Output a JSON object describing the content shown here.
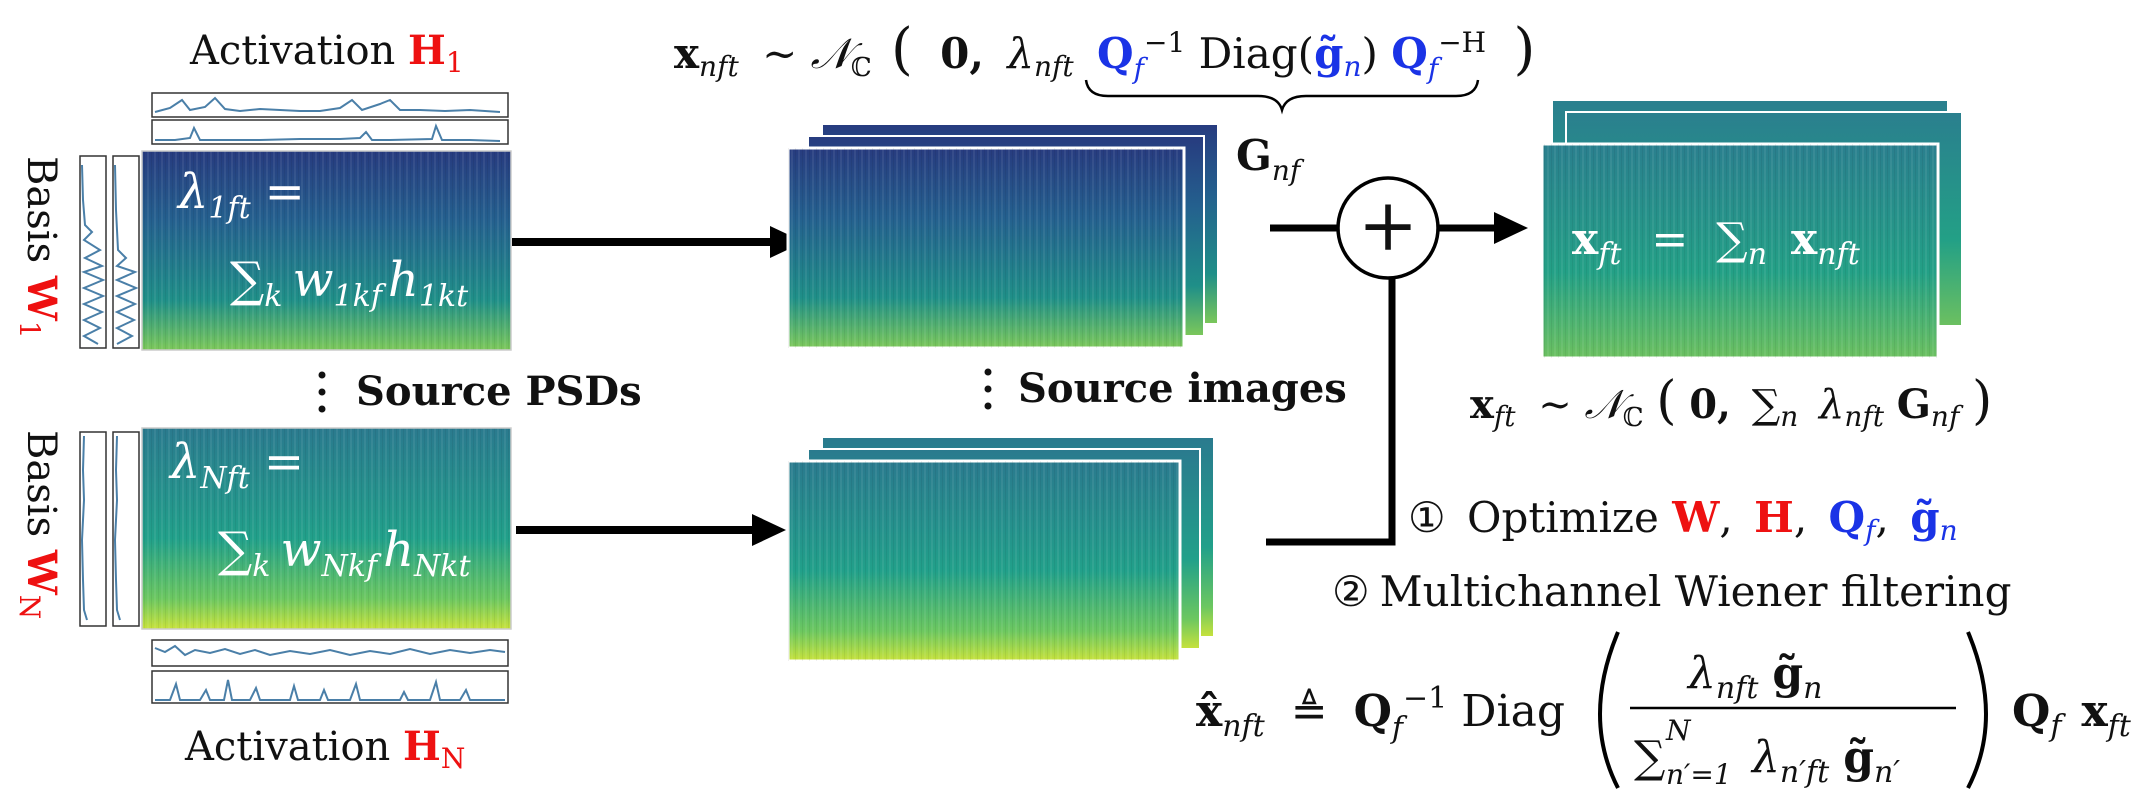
{
  "activation_top": {
    "text": "Activation ",
    "symbol": "H",
    "sub": "1"
  },
  "activation_bottom": {
    "text": "Activation ",
    "symbol": "H",
    "sub": "N"
  },
  "basis_top": {
    "text": "Basis ",
    "symbol": "W",
    "sub": "1"
  },
  "basis_bottom": {
    "text": "Basis ",
    "symbol": "W",
    "sub": "N"
  },
  "lambda_top": {
    "lhs": "λ",
    "lhs_sub": "1ft",
    "eq": "=",
    "sum": "∑",
    "sum_sub": "k",
    "w": "w",
    "w_sub": "1kf",
    "h": "h",
    "h_sub": "1kt"
  },
  "lambda_bottom": {
    "lhs": "λ",
    "lhs_sub": "Nft",
    "eq": "=",
    "sum": "∑",
    "sum_sub": "k",
    "w": "w",
    "w_sub": "Nkf",
    "h": "h",
    "h_sub": "Nkt"
  },
  "source_psds_label": "Source PSDs",
  "source_images_label": "Source images",
  "top_formula": {
    "x": "x",
    "x_sub": "nft",
    "sim": "∼",
    "N": "𝒩",
    "N_sub": "ℂ",
    "zero": "0,",
    "lambda": "λ",
    "lambda_sub": "nft",
    "Q": "Q",
    "Q_sub": "f",
    "inv": "−1",
    "diag": "Diag",
    "g": "g̃",
    "g_sub": "n",
    "Q2": "Q",
    "Q2_sub": "f",
    "herm": "−H"
  },
  "G_label": {
    "G": "G",
    "sub": "nf"
  },
  "plus_symbol": "+",
  "mix_formula": {
    "x": "x",
    "x_sub": "ft",
    "eq": "=",
    "sum": "∑",
    "sum_sub": "n",
    "x2": "x",
    "x2_sub": "nft"
  },
  "mix_dist": {
    "x": "x",
    "x_sub": "ft",
    "sim": "∼",
    "N": "𝒩",
    "N_sub": "ℂ",
    "zero": "0,",
    "sum": "∑",
    "sum_sub": "n",
    "lambda": "λ",
    "lambda_sub": "nft",
    "G": "G",
    "G_sub": "nf"
  },
  "step1": {
    "num": "①",
    "text": "Optimize ",
    "W": "W",
    "H": "H",
    "Q": "Q",
    "Q_sub": "f",
    "g": "g̃",
    "g_sub": "n",
    "comma": ","
  },
  "step2": {
    "num": "②",
    "text": "Multichannel Wiener filtering"
  },
  "wiener": {
    "xhat": "x̂",
    "xhat_sub": "nft",
    "def": "≜",
    "Q": "Q",
    "Q_sub": "f",
    "inv": "−1",
    "diag": "Diag",
    "num_lambda": "λ",
    "num_lambda_sub": "nft",
    "num_g": "g̃",
    "num_g_sub": "n",
    "den_sum": "∑",
    "den_sum_top": "N",
    "den_sum_bot": "n′=1",
    "den_lambda": "λ",
    "den_lambda_sub": "n′ft",
    "den_g": "g̃",
    "den_g_sub": "n′",
    "Q2": "Q",
    "Q2_sub": "f",
    "x": "x",
    "x_sub": "ft"
  },
  "colors": {
    "red": "#ee1111",
    "blue": "#1a33e6",
    "spec_dark": "#2f4f8f",
    "spec_mid": "#2a9a8a",
    "spec_light": "#b9e04a",
    "line": "#4a7fa8"
  }
}
